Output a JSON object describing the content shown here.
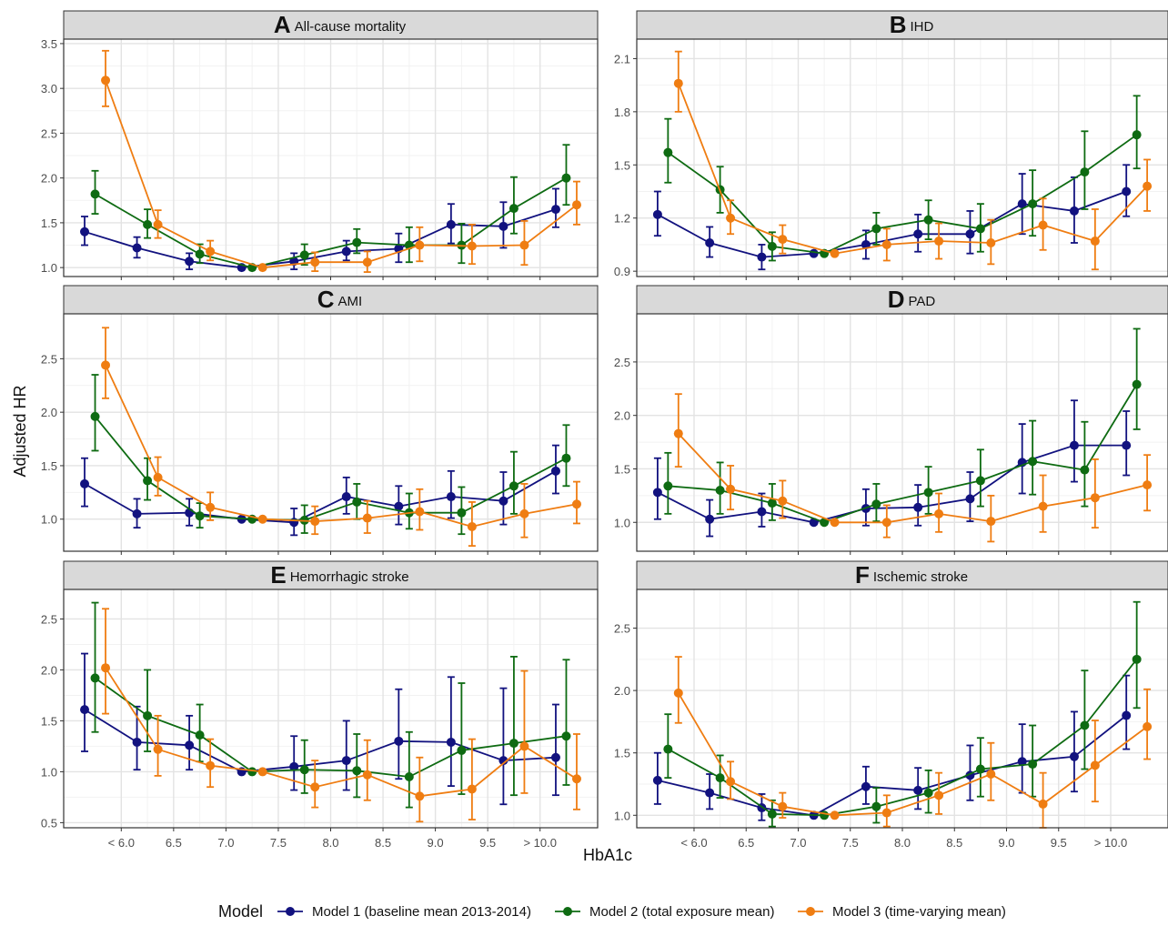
{
  "ylabel": "Adjusted HR",
  "xlabel": "HbA1c",
  "x_ticks": [
    "< 6.0",
    "6.5",
    "7.0",
    "7.5",
    "8.0",
    "8.5",
    "9.0",
    "9.5",
    "> 10.0"
  ],
  "legend": {
    "title": "Model",
    "position": "bottom",
    "items": [
      {
        "label": "Model 1 (baseline mean 2013-2014)",
        "color": "#12127f"
      },
      {
        "label": "Model 2 (total exposure mean)",
        "color": "#0e6b12"
      },
      {
        "label": "Model 3 (time-varying mean)",
        "color": "#ef7d12"
      }
    ]
  },
  "chart_data": [
    {
      "type": "line",
      "panel_letter": "A",
      "title": "All-cause mortality",
      "x": [
        5.75,
        6.25,
        6.75,
        7.25,
        7.75,
        8.25,
        8.75,
        9.25,
        9.75,
        10.25
      ],
      "ylim": [
        0.9,
        3.55
      ],
      "yticks": [
        1.0,
        1.5,
        2.0,
        2.5,
        3.0,
        3.5
      ],
      "grid": true,
      "series": [
        {
          "name": "Model 1 (baseline mean 2013-2014)",
          "values": [
            1.4,
            1.22,
            1.07,
            1.0,
            1.07,
            1.18,
            1.21,
            1.48,
            1.46,
            1.65
          ],
          "lower": [
            1.25,
            1.11,
            0.98,
            1.0,
            0.98,
            1.08,
            1.06,
            1.27,
            1.22,
            1.45
          ],
          "upper": [
            1.57,
            1.34,
            1.16,
            1.0,
            1.16,
            1.3,
            1.38,
            1.71,
            1.73,
            1.88
          ]
        },
        {
          "name": "Model 2 (total exposure mean)",
          "values": [
            1.82,
            1.48,
            1.15,
            1.0,
            1.14,
            1.28,
            1.25,
            1.25,
            1.66,
            2.0
          ],
          "lower": [
            1.6,
            1.33,
            1.05,
            1.0,
            1.03,
            1.16,
            1.06,
            1.05,
            1.38,
            1.7
          ],
          "upper": [
            2.08,
            1.65,
            1.26,
            1.0,
            1.26,
            1.43,
            1.45,
            1.49,
            2.01,
            2.37
          ]
        },
        {
          "name": "Model 3 (time-varying mean)",
          "values": [
            3.09,
            1.48,
            1.18,
            1.0,
            1.06,
            1.06,
            1.25,
            1.24,
            1.25,
            1.7
          ],
          "lower": [
            2.8,
            1.33,
            1.08,
            1.0,
            0.96,
            0.95,
            1.07,
            1.04,
            1.03,
            1.48
          ],
          "upper": [
            3.42,
            1.64,
            1.3,
            1.0,
            1.17,
            1.18,
            1.45,
            1.48,
            1.52,
            1.96
          ]
        }
      ]
    },
    {
      "type": "line",
      "panel_letter": "B",
      "title": "IHD",
      "x": [
        5.75,
        6.25,
        6.75,
        7.25,
        7.75,
        8.25,
        8.75,
        9.25,
        9.75,
        10.25
      ],
      "ylim": [
        0.87,
        2.21
      ],
      "yticks": [
        0.9,
        1.2,
        1.5,
        1.8,
        2.1
      ],
      "grid": true,
      "series": [
        {
          "name": "Model 1 (baseline mean 2013-2014)",
          "values": [
            1.22,
            1.06,
            0.98,
            1.0,
            1.05,
            1.11,
            1.11,
            1.28,
            1.24,
            1.35
          ],
          "lower": [
            1.1,
            0.98,
            0.91,
            1.0,
            0.97,
            1.01,
            1.0,
            1.11,
            1.06,
            1.21
          ],
          "upper": [
            1.35,
            1.15,
            1.05,
            1.0,
            1.13,
            1.22,
            1.24,
            1.45,
            1.43,
            1.5
          ]
        },
        {
          "name": "Model 2 (total exposure mean)",
          "values": [
            1.57,
            1.36,
            1.04,
            1.0,
            1.14,
            1.19,
            1.14,
            1.28,
            1.46,
            1.67
          ],
          "lower": [
            1.4,
            1.23,
            0.96,
            1.0,
            1.05,
            1.08,
            1.01,
            1.1,
            1.25,
            1.48
          ],
          "upper": [
            1.76,
            1.49,
            1.12,
            1.0,
            1.23,
            1.3,
            1.28,
            1.47,
            1.69,
            1.89
          ]
        },
        {
          "name": "Model 3 (time-varying mean)",
          "values": [
            1.96,
            1.2,
            1.08,
            1.0,
            1.05,
            1.07,
            1.06,
            1.16,
            1.07,
            1.38
          ],
          "lower": [
            1.8,
            1.11,
            1.0,
            1.0,
            0.96,
            0.97,
            0.94,
            1.02,
            0.91,
            1.24
          ],
          "upper": [
            2.14,
            1.3,
            1.16,
            1.0,
            1.14,
            1.17,
            1.19,
            1.31,
            1.25,
            1.53
          ]
        }
      ]
    },
    {
      "type": "line",
      "panel_letter": "C",
      "title": "AMI",
      "x": [
        5.75,
        6.25,
        6.75,
        7.25,
        7.75,
        8.25,
        8.75,
        9.25,
        9.75,
        10.25
      ],
      "ylim": [
        0.7,
        2.92
      ],
      "yticks": [
        1.0,
        1.5,
        2.0,
        2.5
      ],
      "grid": true,
      "series": [
        {
          "name": "Model 1 (baseline mean 2013-2014)",
          "values": [
            1.33,
            1.05,
            1.06,
            1.0,
            0.97,
            1.21,
            1.12,
            1.21,
            1.17,
            1.45
          ],
          "lower": [
            1.12,
            0.92,
            0.94,
            1.0,
            0.85,
            1.05,
            0.95,
            1.01,
            0.95,
            1.24
          ],
          "upper": [
            1.57,
            1.19,
            1.19,
            1.0,
            1.1,
            1.39,
            1.31,
            1.45,
            1.44,
            1.69
          ]
        },
        {
          "name": "Model 2 (total exposure mean)",
          "values": [
            1.96,
            1.36,
            1.03,
            1.0,
            0.99,
            1.16,
            1.06,
            1.06,
            1.31,
            1.57
          ],
          "lower": [
            1.64,
            1.18,
            0.92,
            1.0,
            0.87,
            1.0,
            0.91,
            0.86,
            1.05,
            1.31
          ],
          "upper": [
            2.35,
            1.57,
            1.15,
            1.0,
            1.13,
            1.33,
            1.24,
            1.3,
            1.63,
            1.88
          ]
        },
        {
          "name": "Model 3 (time-varying mean)",
          "values": [
            2.44,
            1.39,
            1.11,
            1.0,
            0.98,
            1.01,
            1.07,
            0.93,
            1.05,
            1.14
          ],
          "lower": [
            2.13,
            1.22,
            0.99,
            1.0,
            0.86,
            0.87,
            0.9,
            0.75,
            0.83,
            0.96
          ],
          "upper": [
            2.79,
            1.58,
            1.25,
            1.0,
            1.12,
            1.17,
            1.28,
            1.16,
            1.33,
            1.35
          ]
        }
      ]
    },
    {
      "type": "line",
      "panel_letter": "D",
      "title": "PAD",
      "x": [
        5.75,
        6.25,
        6.75,
        7.25,
        7.75,
        8.25,
        8.75,
        9.25,
        9.75,
        10.25
      ],
      "ylim": [
        0.73,
        2.95
      ],
      "yticks": [
        1.0,
        1.5,
        2.0,
        2.5
      ],
      "grid": true,
      "series": [
        {
          "name": "Model 1 (baseline mean 2013-2014)",
          "values": [
            1.28,
            1.03,
            1.1,
            1.0,
            1.13,
            1.14,
            1.22,
            1.56,
            1.72,
            1.72
          ],
          "lower": [
            1.03,
            0.87,
            0.96,
            1.0,
            0.97,
            0.97,
            1.01,
            1.27,
            1.38,
            1.44
          ],
          "upper": [
            1.6,
            1.21,
            1.27,
            1.0,
            1.31,
            1.35,
            1.47,
            1.92,
            2.14,
            2.04
          ]
        },
        {
          "name": "Model 2 (total exposure mean)",
          "values": [
            1.34,
            1.3,
            1.18,
            1.0,
            1.17,
            1.28,
            1.39,
            1.57,
            1.49,
            2.29
          ],
          "lower": [
            1.08,
            1.08,
            1.02,
            1.0,
            1.01,
            1.08,
            1.15,
            1.26,
            1.15,
            1.87
          ],
          "upper": [
            1.65,
            1.56,
            1.36,
            1.0,
            1.36,
            1.52,
            1.68,
            1.95,
            1.94,
            2.81
          ]
        },
        {
          "name": "Model 3 (time-varying mean)",
          "values": [
            1.83,
            1.31,
            1.2,
            1.0,
            1.0,
            1.08,
            1.01,
            1.15,
            1.23,
            1.35
          ],
          "lower": [
            1.52,
            1.12,
            1.04,
            1.0,
            0.86,
            0.91,
            0.82,
            0.91,
            0.95,
            1.11
          ],
          "upper": [
            2.2,
            1.53,
            1.39,
            1.0,
            1.16,
            1.27,
            1.25,
            1.44,
            1.59,
            1.63
          ]
        }
      ]
    },
    {
      "type": "line",
      "panel_letter": "E",
      "title": "Hemorrhagic stroke",
      "x": [
        5.75,
        6.25,
        6.75,
        7.25,
        7.75,
        8.25,
        8.75,
        9.25,
        9.75,
        10.25
      ],
      "ylim": [
        0.45,
        2.79
      ],
      "yticks": [
        0.5,
        1.0,
        1.5,
        2.0,
        2.5
      ],
      "grid": true,
      "series": [
        {
          "name": "Model 1 (baseline mean 2013-2014)",
          "values": [
            1.61,
            1.29,
            1.26,
            1.0,
            1.05,
            1.11,
            1.3,
            1.29,
            1.11,
            1.14
          ],
          "lower": [
            1.2,
            1.02,
            1.02,
            1.0,
            0.82,
            0.82,
            0.93,
            0.86,
            0.68,
            0.77
          ],
          "upper": [
            2.16,
            1.64,
            1.55,
            1.0,
            1.35,
            1.5,
            1.81,
            1.93,
            1.82,
            1.66
          ]
        },
        {
          "name": "Model 2 (total exposure mean)",
          "values": [
            1.92,
            1.55,
            1.36,
            1.0,
            1.02,
            1.01,
            0.95,
            1.21,
            1.28,
            1.35
          ],
          "lower": [
            1.39,
            1.2,
            1.1,
            1.0,
            0.79,
            0.75,
            0.65,
            0.78,
            0.77,
            0.87
          ],
          "upper": [
            2.66,
            2.0,
            1.66,
            1.0,
            1.31,
            1.37,
            1.39,
            1.87,
            2.13,
            2.1
          ]
        },
        {
          "name": "Model 3 (time-varying mean)",
          "values": [
            2.02,
            1.22,
            1.06,
            1.0,
            0.85,
            0.97,
            0.76,
            0.83,
            1.25,
            0.93
          ],
          "lower": [
            1.57,
            0.96,
            0.85,
            1.0,
            0.65,
            0.72,
            0.51,
            0.53,
            0.79,
            0.63
          ],
          "upper": [
            2.6,
            1.55,
            1.32,
            1.0,
            1.11,
            1.31,
            1.14,
            1.32,
            1.99,
            1.37
          ]
        }
      ]
    },
    {
      "type": "line",
      "panel_letter": "F",
      "title": "Ischemic stroke",
      "x": [
        5.75,
        6.25,
        6.75,
        7.25,
        7.75,
        8.25,
        8.75,
        9.25,
        9.75,
        10.25
      ],
      "ylim": [
        0.9,
        2.81
      ],
      "yticks": [
        1.0,
        1.5,
        2.0,
        2.5
      ],
      "grid": true,
      "series": [
        {
          "name": "Model 1 (baseline mean 2013-2014)",
          "values": [
            1.28,
            1.18,
            1.06,
            1.0,
            1.23,
            1.2,
            1.32,
            1.43,
            1.47,
            1.8
          ],
          "lower": [
            1.09,
            1.05,
            0.96,
            1.0,
            1.09,
            1.05,
            1.12,
            1.18,
            1.19,
            1.53
          ],
          "upper": [
            1.5,
            1.33,
            1.17,
            1.0,
            1.39,
            1.38,
            1.56,
            1.73,
            1.83,
            2.12
          ]
        },
        {
          "name": "Model 2 (total exposure mean)",
          "values": [
            1.53,
            1.3,
            1.01,
            1.0,
            1.07,
            1.18,
            1.37,
            1.41,
            1.72,
            2.25
          ],
          "lower": [
            1.3,
            1.14,
            0.91,
            1.0,
            0.94,
            1.02,
            1.15,
            1.15,
            1.37,
            1.86
          ],
          "upper": [
            1.81,
            1.48,
            1.12,
            1.0,
            1.22,
            1.36,
            1.62,
            1.72,
            2.16,
            2.71
          ]
        },
        {
          "name": "Model 3 (time-varying mean)",
          "values": [
            1.98,
            1.27,
            1.07,
            1.0,
            1.02,
            1.16,
            1.33,
            1.09,
            1.4,
            1.71
          ],
          "lower": [
            1.74,
            1.13,
            0.98,
            1.0,
            0.91,
            1.01,
            1.12,
            0.9,
            1.11,
            1.45
          ],
          "upper": [
            2.27,
            1.43,
            1.18,
            1.0,
            1.16,
            1.34,
            1.58,
            1.34,
            1.76,
            2.01
          ]
        }
      ]
    }
  ]
}
